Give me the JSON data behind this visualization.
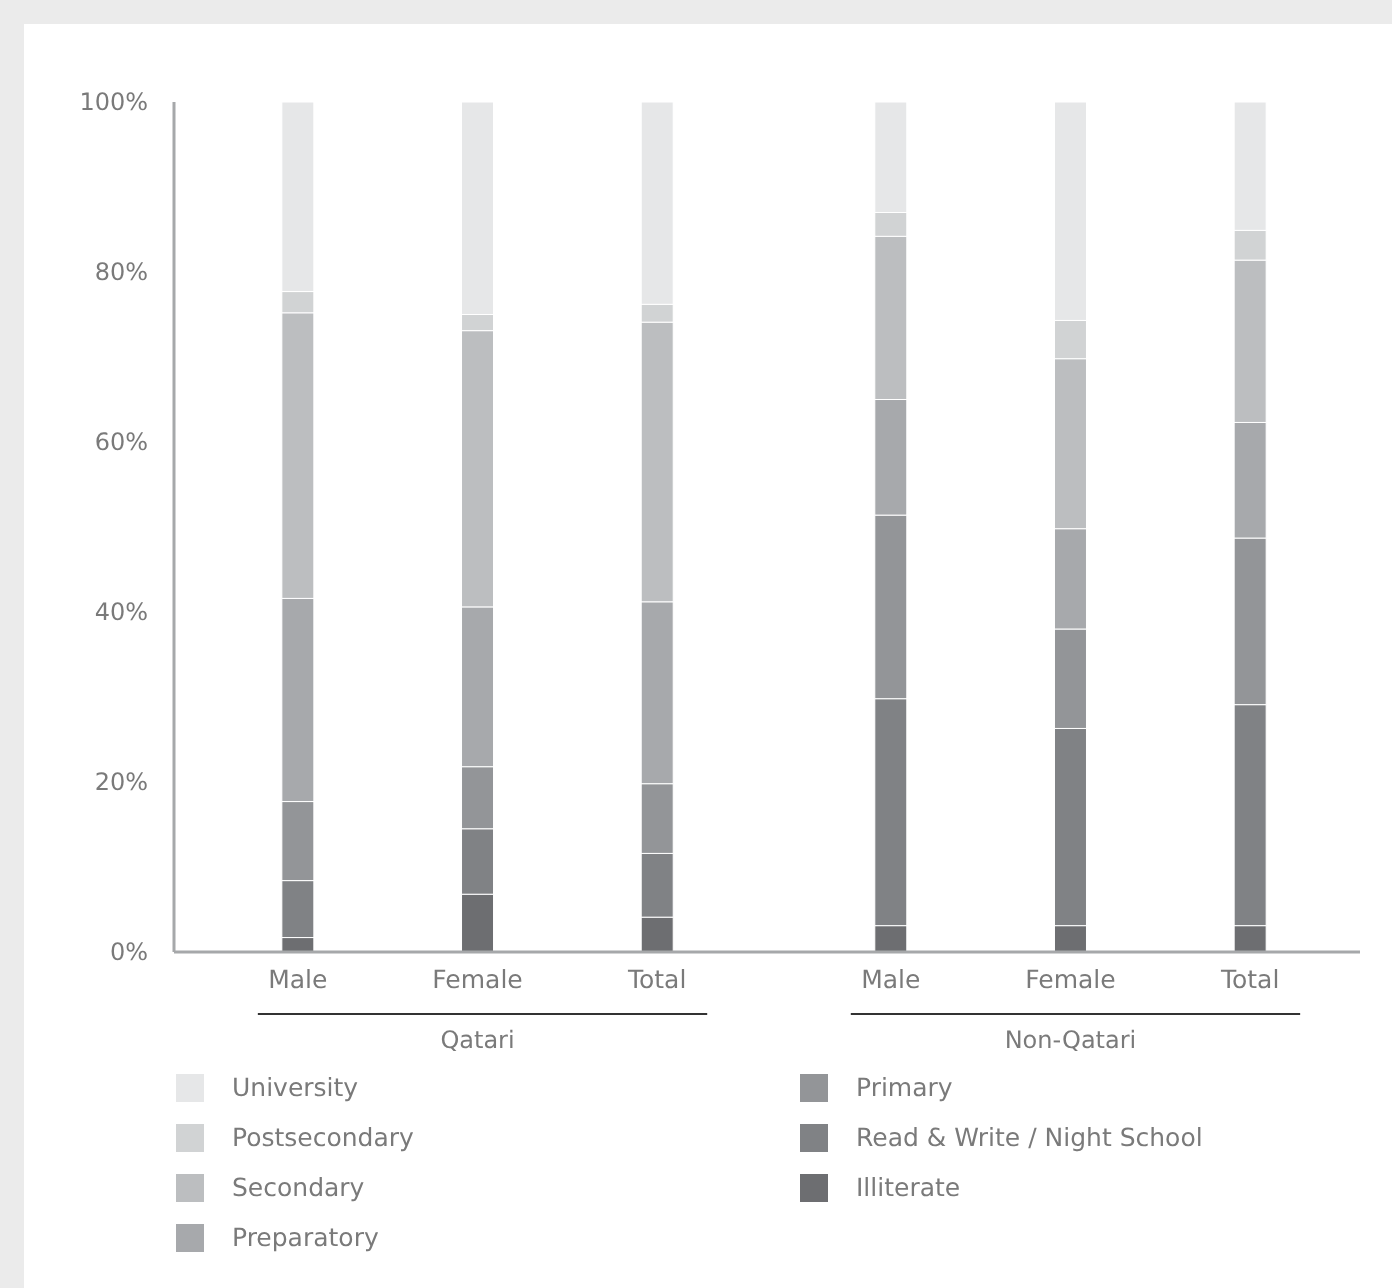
{
  "chart_data": {
    "type": "bar",
    "stacked": true,
    "categories": [
      "Male",
      "Female",
      "Total",
      "Male",
      "Female",
      "Total"
    ],
    "annotations": [
      "Qatari",
      "Non-Qatari"
    ],
    "ylim": [
      0,
      100
    ],
    "yticks": [
      {
        "value": 0,
        "label": "0%"
      },
      {
        "value": 20,
        "label": "20%"
      },
      {
        "value": 40,
        "label": "40%"
      },
      {
        "value": 60,
        "label": "60%"
      },
      {
        "value": 80,
        "label": "80%"
      },
      {
        "value": 100,
        "label": "100%"
      }
    ],
    "legend": "bottom",
    "grid": false,
    "series": [
      {
        "name": "Illiterate",
        "color": "#6d6e71",
        "values": [
          1.7,
          6.8,
          4.1,
          3.1,
          3.1,
          3.1
        ]
      },
      {
        "name": "Read & Write / Night School",
        "color": "#808285",
        "values": [
          6.7,
          7.7,
          7.5,
          26.7,
          23.2,
          26.0
        ]
      },
      {
        "name": "Primary",
        "color": "#939598",
        "values": [
          9.3,
          7.3,
          8.2,
          21.6,
          11.7,
          19.6
        ]
      },
      {
        "name": "Preparatory",
        "color": "#a7a9ac",
        "values": [
          23.9,
          18.8,
          21.4,
          13.6,
          11.8,
          13.6
        ]
      },
      {
        "name": "Secondary",
        "color": "#bcbec0",
        "values": [
          33.6,
          32.5,
          32.9,
          19.2,
          20.0,
          19.1
        ]
      },
      {
        "name": "Postsecondary",
        "color": "#d1d3d4",
        "values": [
          2.5,
          1.9,
          2.1,
          2.8,
          4.5,
          3.5
        ]
      },
      {
        "name": "University",
        "color": "#e6e7e8",
        "values": [
          22.3,
          25.0,
          23.8,
          13.0,
          25.7,
          15.1
        ]
      }
    ]
  }
}
